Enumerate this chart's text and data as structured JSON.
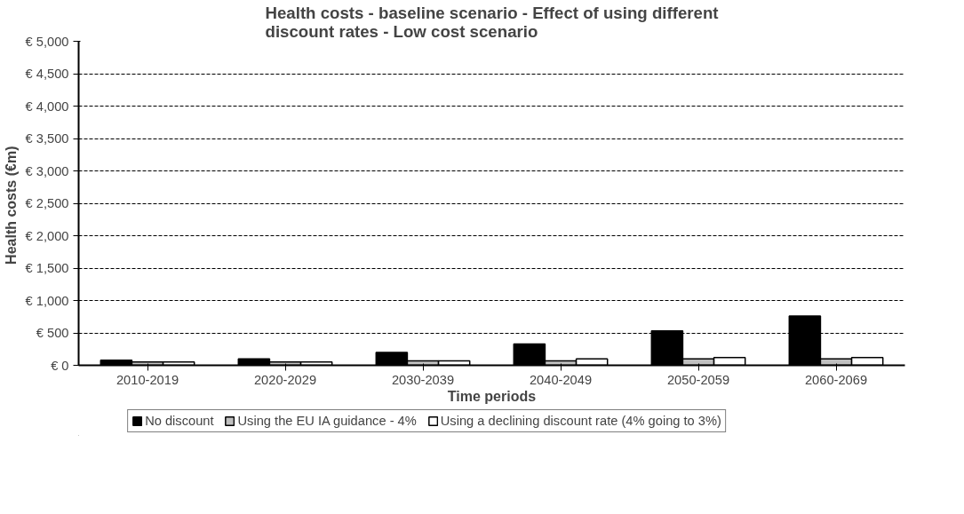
{
  "chart_data": {
    "type": "bar",
    "title": "Health costs - baseline scenario - Effect of using different\ndiscount rates - Low cost scenario",
    "xlabel": "Time periods",
    "ylabel": "Health costs  (€m)",
    "categories": [
      "2010-2019",
      "2020-2029",
      "2030-2039",
      "2040-2049",
      "2050-2059",
      "2060-2069"
    ],
    "series": [
      {
        "name": "No discount",
        "color": "#000000",
        "values": [
          80,
          100,
          200,
          330,
          530,
          760
        ]
      },
      {
        "name": "Using the EU IA guidance - 4%",
        "color": "#c0c0c0",
        "values": [
          50,
          50,
          70,
          70,
          100,
          100
        ]
      },
      {
        "name": "Using a declining discount rate (4% going to 3%)",
        "color": "#ffffff",
        "values": [
          50,
          50,
          70,
          100,
          120,
          120
        ]
      }
    ],
    "ylim": [
      0,
      5000
    ],
    "yticks": [
      {
        "value": 0,
        "label": "€ 0"
      },
      {
        "value": 500,
        "label": "€ 500"
      },
      {
        "value": 1000,
        "label": "€ 1,000"
      },
      {
        "value": 1500,
        "label": "€ 1,500"
      },
      {
        "value": 2000,
        "label": "€ 2,000"
      },
      {
        "value": 2500,
        "label": "€ 2,500"
      },
      {
        "value": 3000,
        "label": "€ 3,000"
      },
      {
        "value": 3500,
        "label": "€ 3,500"
      },
      {
        "value": 4000,
        "label": "€ 4,000"
      },
      {
        "value": 4500,
        "label": "€ 4,500"
      },
      {
        "value": 5000,
        "label": "€ 5,000"
      }
    ],
    "grid": "y",
    "legend": "bottom"
  }
}
